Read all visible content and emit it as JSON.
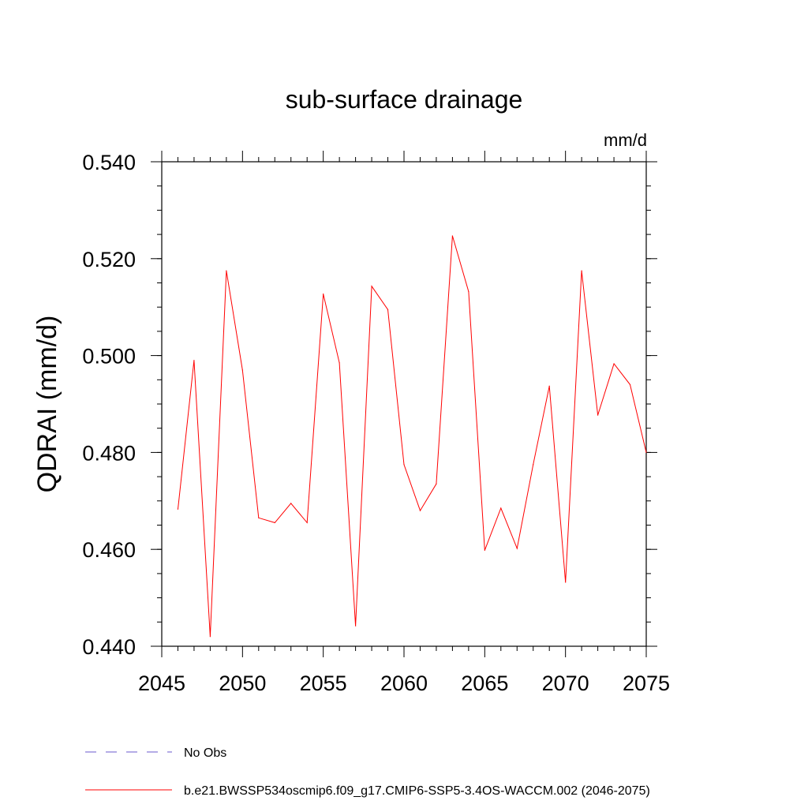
{
  "chart_data": {
    "type": "line",
    "title": "sub-surface drainage",
    "units": "mm/d",
    "xlabel": "",
    "ylabel": "QDRAI  (mm/d)",
    "xlim": [
      2045,
      2075
    ],
    "ylim": [
      0.44,
      0.54
    ],
    "x_ticks": [
      2045,
      2050,
      2055,
      2060,
      2065,
      2070,
      2075
    ],
    "x_tick_labels": [
      "2045",
      "2050",
      "2055",
      "2060",
      "2065",
      "2070",
      "2075"
    ],
    "y_ticks": [
      0.44,
      0.46,
      0.48,
      0.5,
      0.52,
      0.54
    ],
    "y_tick_labels": [
      "0.440",
      "0.460",
      "0.480",
      "0.500",
      "0.520",
      "0.540"
    ],
    "series": [
      {
        "name": "b.e21.BWSSP534oscmip6.f09_g17.CMIP6-SSP5-3.4OS-WACCM.002 (2046-2075)",
        "color": "#ff0000",
        "x": [
          2046,
          2047,
          2048,
          2049,
          2050,
          2051,
          2052,
          2053,
          2054,
          2055,
          2056,
          2057,
          2058,
          2059,
          2060,
          2061,
          2062,
          2063,
          2064,
          2065,
          2066,
          2067,
          2068,
          2069,
          2070,
          2071,
          2072,
          2073,
          2074,
          2075
        ],
        "values": [
          0.4683,
          0.499,
          0.442,
          0.5175,
          0.497,
          0.4665,
          0.4655,
          0.4695,
          0.4655,
          0.5127,
          0.4985,
          0.4442,
          0.5143,
          0.5095,
          0.4775,
          0.468,
          0.4735,
          0.5247,
          0.5132,
          0.4598,
          0.4685,
          0.4602,
          0.4775,
          0.4937,
          0.4532,
          0.5175,
          0.4877,
          0.4983,
          0.494,
          0.48
        ]
      }
    ],
    "legend": [
      {
        "label": "No Obs",
        "color": "#6a5acd",
        "style": "dashed"
      },
      {
        "label": "b.e21.BWSSP534oscmip6.f09_g17.CMIP6-SSP5-3.4OS-WACCM.002 (2046-2075)",
        "color": "#ff0000",
        "style": "solid"
      }
    ],
    "legend_position": "bottom-left"
  }
}
